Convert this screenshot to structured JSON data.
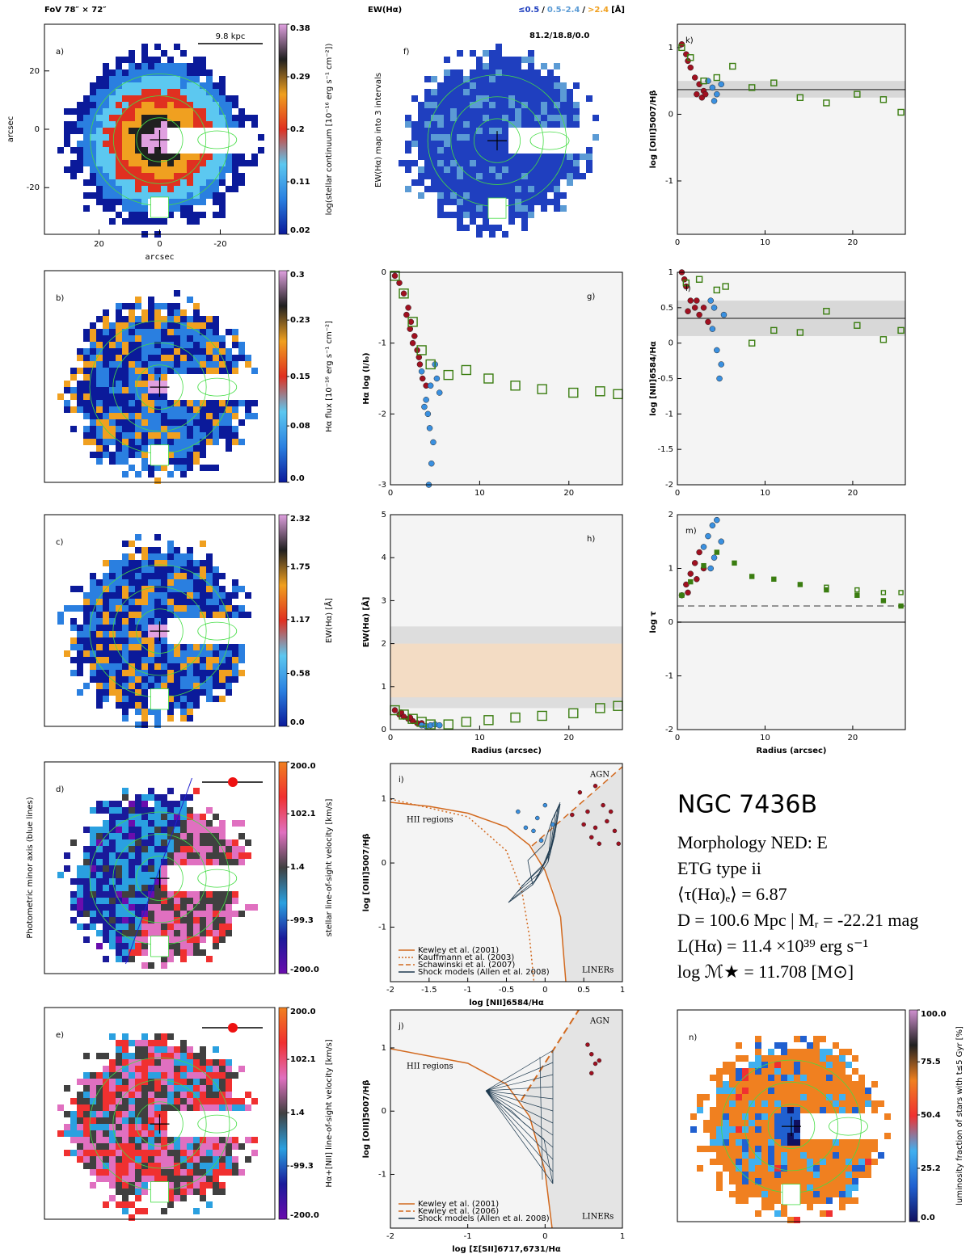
{
  "chart_data": [
    {
      "type": "map",
      "label": "a)",
      "title": "FoV 78″ × 72″",
      "scale_label": "9.8 kpc",
      "xlabel": "arcsec",
      "ylabel": "arcsec",
      "xlim": [
        38,
        -38
      ],
      "ylim": [
        -36,
        36
      ],
      "xticks": [
        20,
        0,
        -20
      ],
      "yticks": [
        20,
        0,
        -20
      ],
      "clim": [
        0.02,
        0.38
      ],
      "cticks": [
        0.02,
        0.11,
        0.2,
        0.29,
        0.38
      ],
      "clabel": "log(stellar continuum [10⁻¹⁶ erg s⁻¹ cm⁻²])",
      "colors": [
        "#0b1a9a",
        "#2a7fe0",
        "#5cc8f0",
        "#e03020",
        "#f0a020",
        "#202020",
        "#e0a0e0"
      ]
    },
    {
      "type": "map",
      "label": "b)",
      "clim": [
        0,
        0.3
      ],
      "cticks": [
        {
          "value": 0,
          "label": "0.0"
        },
        0.08,
        0.15,
        0.23,
        0.3
      ],
      "clabel": "Hα flux [10⁻¹⁶ erg s⁻¹ cm⁻²]",
      "colors": [
        "#0b1a9a",
        "#2a7fe0",
        "#5cc8f0",
        "#e03020",
        "#f0a020",
        "#202020",
        "#e0a0e0"
      ]
    },
    {
      "type": "map",
      "label": "c)",
      "clim": [
        0,
        2.32
      ],
      "cticks": [
        {
          "value": 0,
          "label": "0.0"
        },
        0.58,
        1.17,
        1.75,
        2.32
      ],
      "clabel": "EW(Hα) [Å]",
      "colors": [
        "#0b1a9a",
        "#2a7fe0",
        "#5cc8f0",
        "#e03020",
        "#f0a020",
        "#202020",
        "#e0a0e0"
      ]
    },
    {
      "type": "map",
      "label": "d)",
      "side_label": "Photometric minor axis (blue lines)",
      "clim": [
        -200,
        200
      ],
      "cticks": [
        {
          "value": -200,
          "label": "-200.0"
        },
        -99.3,
        1.4,
        102.1,
        {
          "value": 200,
          "label": "200.0"
        }
      ],
      "clabel": "stellar line-of-sight velocity [km/s]",
      "colors": [
        "#6a0dad",
        "#1a1a9a",
        "#2aa0e0",
        "#404040",
        "#e070c0",
        "#f03030",
        "#f08020"
      ]
    },
    {
      "type": "map",
      "label": "e)",
      "clim": [
        -200,
        200
      ],
      "cticks": [
        {
          "value": -200,
          "label": "-200.0"
        },
        -99.3,
        1.4,
        102.1,
        {
          "value": 200,
          "label": "200.0"
        }
      ],
      "clabel": "Hα+[NII] line-of-sight velocity [km/s]",
      "colors": [
        "#6a0dad",
        "#1a1a9a",
        "#2aa0e0",
        "#404040",
        "#e070c0",
        "#f03030",
        "#f08020"
      ]
    },
    {
      "type": "map",
      "label": "f)",
      "title": "EW(Hα)",
      "ylabel": "EW(Hα) map into 3 intervals",
      "annotation": "81.2/18.8/0.0",
      "legend": [
        {
          "text": "≤0.5",
          "color": "#1f3fbf"
        },
        {
          "text": "0.5–2.4",
          "color": "#5b9bd5"
        },
        {
          "text": ">2.4",
          "color": "#f0a020"
        }
      ],
      "separator": "/",
      "unit": "[Å]"
    },
    {
      "type": "scatter",
      "label": "g)",
      "ylabel": "Hα log (I/I₀)",
      "xlim": [
        0,
        26
      ],
      "xticks": [
        0,
        10,
        20
      ],
      "ylim": [
        -3,
        0
      ],
      "yticks": [
        -3,
        -2,
        -1,
        0
      ],
      "series": [
        {
          "color": "#a01020",
          "marker": "o",
          "x": [
            0.5,
            1,
            1.5,
            2,
            2.3,
            2.7,
            3,
            3.3,
            1.8,
            2.5,
            3.6,
            4,
            2.2,
            3.2
          ],
          "values": [
            -0.05,
            -0.15,
            -0.3,
            -0.5,
            -0.7,
            -0.9,
            -1.1,
            -1.3,
            -0.6,
            -1.0,
            -1.5,
            -1.6,
            -0.8,
            -1.2
          ]
        },
        {
          "color": "#3a90e0",
          "marker": "o",
          "x": [
            3.5,
            4,
            4.2,
            4.5,
            5,
            5.2,
            4.8,
            4.6,
            4.3,
            3.8,
            5.5,
            4.4
          ],
          "values": [
            -1.4,
            -1.8,
            -2.0,
            -1.6,
            -1.3,
            -1.5,
            -2.4,
            -2.7,
            -3.0,
            -1.9,
            -1.7,
            -2.2
          ]
        },
        {
          "color": "#3a7d10",
          "marker": "s",
          "x": [
            0.5,
            1.5,
            2.5,
            3.5,
            4.5,
            6.5,
            8.5,
            11,
            14,
            17,
            20.5,
            23.5,
            25.5
          ],
          "values": [
            -0.05,
            -0.3,
            -0.7,
            -1.1,
            -1.3,
            -1.45,
            -1.38,
            -1.5,
            -1.6,
            -1.65,
            -1.7,
            -1.68,
            -1.72
          ]
        }
      ]
    },
    {
      "type": "scatter",
      "label": "h)",
      "xlabel": "Radius (arcsec)",
      "ylabel": "EW(Hα) [Å]",
      "xlim": [
        0,
        26
      ],
      "xticks": [
        0,
        10,
        20
      ],
      "ylim": [
        0,
        5
      ],
      "yticks": [
        0,
        1,
        2,
        3,
        4,
        5
      ],
      "bands": [
        {
          "range": [
            0.5,
            2.4
          ],
          "color": "#dddddd"
        },
        {
          "range": [
            0.75,
            2.0
          ],
          "color": "#f3dcc4"
        }
      ],
      "series": [
        {
          "color": "#a01020",
          "marker": "o",
          "x": [
            0.5,
            1,
            1.5,
            2,
            2.5,
            3,
            3.5,
            1.2,
            2.2
          ],
          "values": [
            0.45,
            0.35,
            0.3,
            0.25,
            0.2,
            0.15,
            0.15,
            0.4,
            0.28
          ]
        },
        {
          "color": "#3a90e0",
          "marker": "o",
          "x": [
            3.5,
            4,
            4.5,
            5,
            5.5
          ],
          "values": [
            0.1,
            0.08,
            0.1,
            0.12,
            0.1
          ]
        },
        {
          "color": "#3a7d10",
          "marker": "s",
          "x": [
            0.5,
            1.5,
            2.5,
            3.5,
            4.5,
            6.5,
            8.5,
            11,
            14,
            17,
            20.5,
            23.5,
            25.5
          ],
          "values": [
            0.45,
            0.35,
            0.25,
            0.18,
            0.12,
            0.12,
            0.18,
            0.22,
            0.28,
            0.32,
            0.38,
            0.5,
            0.55
          ]
        }
      ]
    },
    {
      "type": "scatter",
      "label": "i)",
      "xlabel": "log [NII]6584/Hα",
      "ylabel": "log [OIII]5007/Hβ",
      "xlim": [
        -2,
        1
      ],
      "xticks": [
        -2,
        -1.5,
        -1,
        -0.5,
        0,
        0.5,
        1
      ],
      "ylim": [
        -1.85,
        1.55
      ],
      "yticks": [
        -1,
        0,
        1
      ],
      "region_labels": {
        "agn": "AGN",
        "hii": "HII regions",
        "liner": "LINERs"
      },
      "legend": [
        {
          "text": "Kewley et al. (2001)",
          "color": "#d2691e",
          "style": "solid"
        },
        {
          "text": "Kauffmann et al. (2003)",
          "color": "#d2691e",
          "style": "dotted"
        },
        {
          "text": "Schawinski et al. (2007)",
          "color": "#d2691e",
          "style": "dashed"
        },
        {
          "text": "Shock models (Allen et al. 2008)",
          "color": "#1e3a4f",
          "style": "solid"
        }
      ],
      "series": [
        {
          "color": "#a01020",
          "marker": "o",
          "x": [
            0.35,
            0.5,
            0.55,
            0.6,
            0.65,
            0.7,
            0.75,
            0.8,
            0.9,
            0.95,
            0.45,
            0.65,
            0.85
          ],
          "values": [
            0.75,
            0.6,
            0.8,
            0.4,
            0.55,
            0.3,
            0.9,
            0.65,
            0.5,
            0.3,
            1.1,
            1.2,
            0.8
          ]
        },
        {
          "color": "#3a90e0",
          "marker": "o",
          "x": [
            -0.35,
            -0.15,
            -0.1,
            0.0,
            -0.25,
            0.1,
            -0.05
          ],
          "values": [
            0.8,
            0.5,
            0.7,
            0.9,
            0.55,
            0.6,
            0.35
          ]
        }
      ]
    },
    {
      "type": "scatter",
      "label": "j)",
      "xlabel": "log [Σ[SII]6717,6731/Hα",
      "ylabel": "log [OIII]5007/Hβ",
      "xlim": [
        -2,
        1
      ],
      "xticks": [
        -2,
        -1,
        0,
        1
      ],
      "ylim": [
        -1.85,
        1.6
      ],
      "yticks": [
        -1,
        0,
        1
      ],
      "region_labels": {
        "agn": "AGN",
        "hii": "HII regions",
        "liner": "LINERs"
      },
      "legend": [
        {
          "text": "Kewley et al. (2001)",
          "color": "#d2691e",
          "style": "solid"
        },
        {
          "text": "Kewley et al. (2006)",
          "color": "#d2691e",
          "style": "dashed"
        },
        {
          "text": "Shock models (Allen et al. 2008)",
          "color": "#1e3a4f",
          "style": "solid"
        }
      ],
      "series": [
        {
          "color": "#a01020",
          "marker": "o",
          "x": [
            0.55,
            0.6,
            0.65,
            0.6,
            0.7
          ],
          "values": [
            1.05,
            0.9,
            0.75,
            0.6,
            0.8
          ]
        }
      ]
    },
    {
      "type": "scatter",
      "label": "k)",
      "ylabel": "log [OIII]5007/Hβ",
      "xlim": [
        0,
        26
      ],
      "xticks": [
        0,
        10,
        20
      ],
      "ylim": [
        -1.8,
        1.35
      ],
      "yticks": [
        -1,
        0,
        1
      ],
      "hlines": [
        {
          "value": 0.37,
          "style": "solid",
          "band": [
            0.25,
            0.5
          ]
        }
      ],
      "series": [
        {
          "color": "#a01020",
          "marker": "o",
          "x": [
            0.5,
            1,
            1.5,
            2,
            2.5,
            3,
            1.2,
            2.2,
            2.8,
            3.2
          ],
          "values": [
            1.05,
            0.9,
            0.7,
            0.55,
            0.45,
            0.35,
            0.8,
            0.3,
            0.25,
            0.3
          ]
        },
        {
          "color": "#3a90e0",
          "marker": "o",
          "x": [
            3.5,
            4,
            4.5,
            5,
            4.2
          ],
          "values": [
            0.5,
            0.4,
            0.3,
            0.45,
            0.2
          ]
        },
        {
          "color": "#3a7d10",
          "marker": "s",
          "x": [
            0.5,
            1.5,
            3,
            4.5,
            6.3,
            8.5,
            11,
            14,
            17,
            20.5,
            23.5,
            25.5
          ],
          "values": [
            1.0,
            0.85,
            0.5,
            0.55,
            0.72,
            0.4,
            0.47,
            0.25,
            0.17,
            0.3,
            0.22,
            0.03
          ]
        }
      ]
    },
    {
      "type": "scatter",
      "label": "l)",
      "ylabel": "log [NII]6584/Hα",
      "xlim": [
        0,
        26
      ],
      "xticks": [
        0,
        10,
        20
      ],
      "ylim": [
        -2,
        1
      ],
      "yticks": [
        -2,
        -1.5,
        -1,
        -0.5,
        0,
        0.5,
        1
      ],
      "hlines": [
        {
          "value": 0.35,
          "style": "solid",
          "band": [
            0.1,
            0.6
          ]
        }
      ],
      "series": [
        {
          "color": "#a01020",
          "marker": "o",
          "x": [
            0.5,
            1,
            1.5,
            2,
            2.5,
            3,
            3.5,
            1.2,
            2.2,
            0.8
          ],
          "values": [
            1.0,
            0.8,
            0.6,
            0.5,
            0.4,
            0.5,
            0.3,
            0.45,
            0.6,
            0.9
          ]
        },
        {
          "color": "#3a90e0",
          "marker": "o",
          "x": [
            4,
            4.5,
            5,
            4.2,
            5.3,
            4.8,
            3.8
          ],
          "values": [
            0.2,
            -0.1,
            -0.3,
            0.5,
            0.4,
            -0.5,
            0.6
          ]
        },
        {
          "color": "#3a7d10",
          "marker": "s",
          "x": [
            1,
            2.5,
            4.5,
            5.5,
            8.5,
            11,
            14,
            17,
            20.5,
            23.5,
            25.5
          ],
          "values": [
            0.85,
            0.9,
            0.75,
            0.8,
            0.0,
            0.18,
            0.15,
            0.45,
            0.25,
            0.05,
            0.18
          ]
        }
      ]
    },
    {
      "type": "scatter",
      "label": "m)",
      "xlabel": "Radius (arcsec)",
      "ylabel": "log τ",
      "xlim": [
        0,
        26
      ],
      "xticks": [
        0,
        10,
        20
      ],
      "ylim": [
        -2,
        2
      ],
      "yticks": [
        -2,
        -1,
        0,
        1,
        2
      ],
      "hlines": [
        {
          "value": 0.3,
          "style": "dashed"
        },
        {
          "value": 0,
          "style": "solid"
        }
      ],
      "series": [
        {
          "color": "#a01020",
          "marker": "o",
          "x": [
            0.5,
            1,
            1.5,
            2,
            2.5,
            3,
            1.2,
            2.2
          ],
          "values": [
            0.5,
            0.7,
            0.9,
            1.1,
            1.3,
            1.0,
            0.55,
            0.8
          ]
        },
        {
          "color": "#3a90e0",
          "marker": "o",
          "x": [
            3,
            3.5,
            4,
            4.5,
            5,
            4.2,
            3.8
          ],
          "values": [
            1.4,
            1.6,
            1.8,
            1.9,
            1.5,
            1.2,
            1.0
          ]
        },
        {
          "color": "#3a7d10",
          "marker": "s",
          "filled": true,
          "x": [
            0.5,
            1.5,
            3,
            4.5,
            6.5,
            8.5,
            11,
            14,
            17,
            20.5,
            23.5,
            25.5
          ],
          "values": [
            0.5,
            0.75,
            1.05,
            1.3,
            1.1,
            0.85,
            0.8,
            0.7,
            0.6,
            0.5,
            0.4,
            0.3
          ]
        },
        {
          "color": "#3a7d10",
          "marker": "s",
          "x": [
            17,
            20.5,
            23.5,
            25.5
          ],
          "values": [
            0.65,
            0.6,
            0.55,
            0.55
          ]
        }
      ]
    },
    {
      "type": "map",
      "label": "n)",
      "clim": [
        0,
        100
      ],
      "cticks": [
        {
          "value": 0,
          "label": "0.0"
        },
        25.2,
        50.4,
        75.5,
        {
          "value": 100,
          "label": "100.0"
        }
      ],
      "clabel": "luminosity fraction of stars with t≤5 Gyr [%]",
      "colors": [
        "#101060",
        "#2060d0",
        "#40b0f0",
        "#f03030",
        "#f08020",
        "#202020",
        "#d090d0"
      ]
    }
  ],
  "info": {
    "title": "NGC 7436B",
    "lines": [
      "Morphology NED: E",
      "ETG type ii",
      "⟨τ(Hα)ₑ⟩ = 6.87",
      "D = 100.6 Mpc | Mᵣ = -22.21 mag",
      "L(Hα) = 11.4 ×10³⁹ erg s⁻¹",
      "log ℳ★ = 11.708 [M⊙]"
    ]
  }
}
